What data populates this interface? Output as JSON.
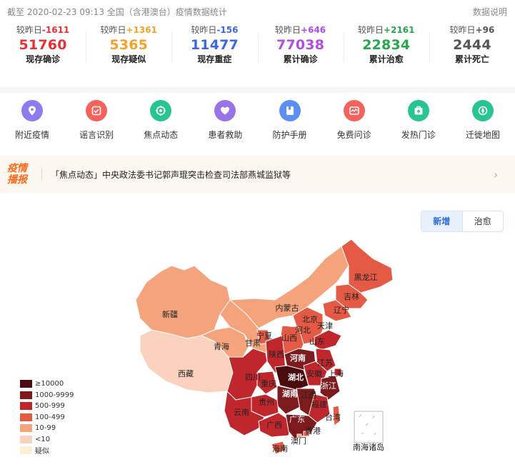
{
  "header": {
    "title": "截至 2020-02-23 09:13 全国（含港澳台）疫情数据统计",
    "note_link": "数据说明"
  },
  "stats": [
    {
      "cmp_prefix": "较昨日",
      "cmp_value": "-1611",
      "value": "51760",
      "label": "现存确诊",
      "color": "#e83132"
    },
    {
      "cmp_prefix": "较昨日",
      "cmp_value": "+1361",
      "value": "5365",
      "label": "现存疑似",
      "color": "#f7a12d"
    },
    {
      "cmp_prefix": "较昨日",
      "cmp_value": "-156",
      "value": "11477",
      "label": "现存重症",
      "color": "#3b67e0"
    },
    {
      "cmp_prefix": "较昨日",
      "cmp_value": "+646",
      "value": "77038",
      "label": "累计确诊",
      "color": "#b04de6"
    },
    {
      "cmp_prefix": "较昨日",
      "cmp_value": "+2161",
      "value": "22834",
      "label": "累计治愈",
      "color": "#27a84c"
    },
    {
      "cmp_prefix": "较昨日",
      "cmp_value": "+96",
      "value": "2444",
      "label": "累计死亡",
      "color": "#555555"
    }
  ],
  "shortcuts": [
    {
      "label": "附近疫情",
      "icon": "location-pin-icon",
      "color": "#8c7cf0"
    },
    {
      "label": "谣言识别",
      "icon": "rumor-check-icon",
      "color": "#f4625e"
    },
    {
      "label": "焦点动态",
      "icon": "focus-news-icon",
      "color": "#27c68f"
    },
    {
      "label": "患者救助",
      "icon": "heart-icon",
      "color": "#9b73e8"
    },
    {
      "label": "防护手册",
      "icon": "handbook-icon",
      "color": "#5b8ff3"
    },
    {
      "label": "免费问诊",
      "icon": "consult-icon",
      "color": "#f4625e"
    },
    {
      "label": "发热门诊",
      "icon": "clinic-icon",
      "color": "#27c68f"
    },
    {
      "label": "迁徙地图",
      "icon": "migration-map-icon",
      "color": "#27c68f"
    }
  ],
  "ticker": {
    "badge_line1": "疫情",
    "badge_line2": "播报",
    "text": "「焦点动态」中央政法委书记郭声琨突击检查司法部燕城监狱等"
  },
  "map_toggle": {
    "active": "新增",
    "inactive": "治愈"
  },
  "legend": [
    {
      "label": "≥10000",
      "color": "#4a0c0f"
    },
    {
      "label": "1000-9999",
      "color": "#7d1a1d"
    },
    {
      "label": "500-999",
      "color": "#c0272d"
    },
    {
      "label": "100-499",
      "color": "#e55a44"
    },
    {
      "label": "10-99",
      "color": "#f4a37d"
    },
    {
      "label": "<10",
      "color": "#fbd2bd"
    },
    {
      "label": "疑似",
      "color": "#fdefd6"
    }
  ],
  "map_labels": {
    "heilongjiang": "黑龙江",
    "jilin": "吉林",
    "liaoning": "辽宁",
    "neimenggu": "内蒙古",
    "beijing": "北京",
    "tianjin": "天津",
    "hebei": "河北",
    "shanxi": "山西",
    "shandong": "山东",
    "xinjiang": "新疆",
    "xizang": "西藏",
    "qinghai": "青海",
    "gansu": "甘肃",
    "ningxia": "宁夏",
    "shaanxi": "陕西",
    "henan": "河南",
    "jiangsu": "江苏",
    "anhui": "安徽",
    "shanghai": "上海",
    "hubei": "湖北",
    "zhejiang": "浙江",
    "sichuan": "四川",
    "chongqing": "重庆",
    "hunan": "湖南",
    "jiangxi": "江西",
    "guizhou": "贵州",
    "yunnan": "云南",
    "guangxi": "广西",
    "guangdong": "广东",
    "fujian": "福建",
    "taiwan": "台湾",
    "xianggang": "香港",
    "aomen": "澳门",
    "hainan": "海南",
    "nanhai": "南海诸岛"
  }
}
